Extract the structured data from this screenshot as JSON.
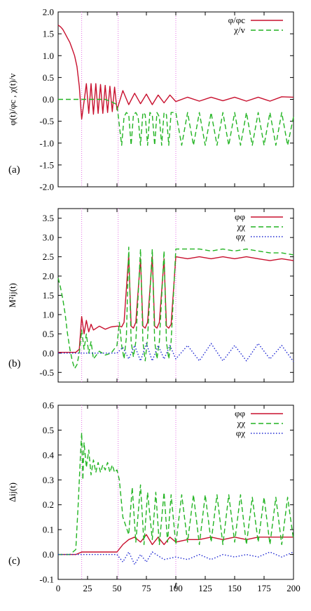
{
  "figure": {
    "xlabel": "t",
    "x_ticks": [
      "0",
      "25",
      "50",
      "75",
      "100",
      "125",
      "150",
      "175",
      "200"
    ],
    "xlim": [
      0,
      200
    ],
    "vlines": [
      20,
      51,
      100
    ],
    "colors": {
      "red": "#c8102e",
      "green": "#22b422",
      "blue": "#1e28d2",
      "vline": "#e46ee4"
    }
  },
  "chart_data": [
    {
      "type": "line",
      "panel": "(a)",
      "ylabel": "φ(t)/φc , χ(t)/v",
      "ylim": [
        -2.0,
        2.0
      ],
      "y_ticks": [
        "2.0",
        "1.5",
        "1.0",
        "0.5",
        "0.0",
        "-0.5",
        "-1.0",
        "-1.5",
        "-2.0"
      ],
      "legend": {
        "position": "top-right",
        "entries": [
          "φ/φc",
          "χ/v"
        ]
      },
      "series": [
        {
          "name": "φ/φc",
          "color": "red",
          "style": "solid",
          "x": [
            0,
            2,
            4,
            6,
            8,
            10,
            12,
            14,
            16,
            18,
            20,
            22,
            24,
            26,
            28,
            30,
            32,
            34,
            36,
            38,
            40,
            42,
            44,
            46,
            48,
            50,
            55,
            60,
            65,
            70,
            75,
            80,
            85,
            90,
            95,
            100,
            110,
            120,
            130,
            140,
            150,
            160,
            170,
            180,
            190,
            200
          ],
          "y": [
            1.7,
            1.66,
            1.6,
            1.5,
            1.4,
            1.3,
            1.15,
            1.0,
            0.75,
            0.3,
            -0.45,
            -0.05,
            0.36,
            -0.32,
            0.36,
            -0.34,
            0.36,
            -0.32,
            0.34,
            -0.32,
            0.32,
            -0.3,
            0.3,
            -0.28,
            0.28,
            -0.24,
            0.2,
            -0.12,
            0.14,
            -0.1,
            0.12,
            -0.12,
            0.1,
            -0.08,
            0.1,
            -0.05,
            0.05,
            -0.04,
            0.05,
            -0.03,
            0.05,
            -0.04,
            0.05,
            -0.04,
            0.06,
            0.05
          ]
        },
        {
          "name": "χ/v",
          "color": "green",
          "style": "dashed",
          "x": [
            0,
            20,
            40,
            45,
            50,
            52,
            54,
            56,
            58,
            60,
            62,
            64,
            66,
            68,
            70,
            72,
            74,
            76,
            78,
            80,
            82,
            84,
            86,
            88,
            90,
            92,
            94,
            96,
            98,
            100,
            105,
            110,
            115,
            120,
            125,
            130,
            135,
            140,
            145,
            150,
            155,
            160,
            165,
            170,
            175,
            180,
            185,
            190,
            195,
            200
          ],
          "y": [
            0.0,
            0.0,
            0.0,
            -0.05,
            -0.12,
            -0.6,
            -1.05,
            -0.4,
            -0.3,
            -0.35,
            -1.05,
            -0.35,
            -0.3,
            -0.4,
            -1.05,
            -0.3,
            -0.35,
            -1.05,
            -0.3,
            -0.35,
            -1.05,
            -0.3,
            -0.4,
            -1.05,
            -0.3,
            -0.35,
            -1.05,
            -0.3,
            -0.3,
            -0.3,
            -1.05,
            -0.3,
            -1.05,
            -0.3,
            -1.05,
            -0.3,
            -1.05,
            -0.3,
            -1.05,
            -0.3,
            -1.05,
            -0.3,
            -1.05,
            -0.3,
            -1.05,
            -0.3,
            -1.05,
            -0.3,
            -1.05,
            -0.4
          ]
        }
      ]
    },
    {
      "type": "line",
      "panel": "(b)",
      "ylabel": "M²ij(t)",
      "ylim": [
        -0.75,
        3.75
      ],
      "y_ticks": [
        "3.5",
        "3.0",
        "2.5",
        "2.0",
        "1.5",
        "1.0",
        "0.5",
        "0.0",
        "-0.5"
      ],
      "legend": {
        "position": "top-right",
        "entries": [
          "φφ",
          "χχ",
          "φχ"
        ]
      },
      "series": [
        {
          "name": "φφ",
          "color": "red",
          "style": "solid",
          "x": [
            0,
            10,
            15,
            18,
            20,
            22,
            24,
            26,
            28,
            30,
            35,
            40,
            45,
            50,
            52,
            54,
            56,
            60,
            62,
            64,
            66,
            70,
            72,
            74,
            76,
            80,
            82,
            84,
            86,
            90,
            92,
            94,
            96,
            100,
            110,
            120,
            130,
            140,
            150,
            160,
            170,
            180,
            190,
            200
          ],
          "y": [
            0.02,
            0.02,
            0.02,
            0.1,
            0.95,
            0.5,
            0.85,
            0.55,
            0.75,
            0.6,
            0.7,
            0.62,
            0.68,
            0.7,
            0.7,
            0.68,
            0.8,
            2.55,
            0.7,
            0.65,
            0.8,
            2.45,
            0.7,
            0.65,
            0.8,
            2.5,
            0.7,
            0.65,
            0.8,
            2.45,
            0.7,
            0.65,
            0.75,
            2.5,
            2.45,
            2.5,
            2.45,
            2.5,
            2.45,
            2.5,
            2.45,
            2.4,
            2.45,
            2.4
          ]
        },
        {
          "name": "χχ",
          "color": "green",
          "style": "dashed",
          "x": [
            0,
            2,
            4,
            6,
            8,
            10,
            12,
            14,
            16,
            18,
            20,
            22,
            24,
            26,
            28,
            30,
            35,
            40,
            45,
            50,
            52,
            54,
            56,
            58,
            60,
            62,
            64,
            66,
            70,
            72,
            74,
            76,
            80,
            82,
            84,
            86,
            90,
            92,
            94,
            96,
            100,
            110,
            120,
            130,
            140,
            150,
            160,
            170,
            180,
            190,
            200
          ],
          "y": [
            1.95,
            1.7,
            1.4,
            1.0,
            0.5,
            0.1,
            -0.2,
            -0.4,
            -0.3,
            0.0,
            0.6,
            0.1,
            0.5,
            0.0,
            0.3,
            -0.15,
            0.05,
            -0.05,
            0.0,
            0.2,
            0.8,
            0.2,
            -0.15,
            0.4,
            2.75,
            0.3,
            -0.1,
            0.3,
            2.7,
            0.3,
            -0.2,
            0.4,
            2.7,
            0.3,
            -0.15,
            0.3,
            2.65,
            0.3,
            -0.15,
            0.3,
            2.7,
            2.7,
            2.7,
            2.65,
            2.7,
            2.65,
            2.7,
            2.65,
            2.6,
            2.6,
            2.55
          ]
        },
        {
          "name": "φχ",
          "color": "blue",
          "style": "dotted",
          "x": [
            0,
            20,
            30,
            40,
            50,
            55,
            60,
            65,
            70,
            75,
            80,
            85,
            90,
            95,
            100,
            110,
            120,
            130,
            140,
            150,
            160,
            170,
            180,
            190,
            200
          ],
          "y": [
            0.0,
            0.0,
            0.0,
            0.0,
            0.0,
            0.15,
            -0.15,
            0.2,
            -0.2,
            0.25,
            -0.2,
            0.2,
            -0.15,
            0.2,
            -0.15,
            0.2,
            -0.2,
            0.25,
            -0.2,
            0.2,
            -0.2,
            0.25,
            -0.15,
            0.2,
            -0.22
          ]
        }
      ]
    },
    {
      "type": "line",
      "panel": "(c)",
      "ylabel": "Δij(t)",
      "ylim": [
        -0.1,
        0.6
      ],
      "y_ticks": [
        "0.6",
        "0.5",
        "0.4",
        "0.3",
        "0.2",
        "0.1",
        "0.0",
        "-0.1"
      ],
      "legend": {
        "position": "top-right",
        "entries": [
          "φφ",
          "χχ",
          "φχ"
        ]
      },
      "series": [
        {
          "name": "φφ",
          "color": "red",
          "style": "solid",
          "x": [
            0,
            10,
            15,
            20,
            25,
            30,
            40,
            50,
            55,
            60,
            65,
            70,
            75,
            80,
            85,
            90,
            95,
            100,
            110,
            120,
            130,
            140,
            150,
            160,
            170,
            180,
            190,
            200
          ],
          "y": [
            0.0,
            0.0,
            0.0,
            0.01,
            0.01,
            0.01,
            0.01,
            0.01,
            0.04,
            0.06,
            0.07,
            0.05,
            0.08,
            0.04,
            0.07,
            0.04,
            0.07,
            0.05,
            0.06,
            0.06,
            0.07,
            0.06,
            0.07,
            0.06,
            0.07,
            0.07,
            0.07,
            0.07
          ]
        },
        {
          "name": "χχ",
          "color": "green",
          "style": "dashed",
          "x": [
            0,
            10,
            15,
            17,
            19,
            20,
            21,
            22,
            24,
            26,
            28,
            30,
            32,
            34,
            36,
            38,
            40,
            42,
            44,
            46,
            48,
            50,
            52,
            55,
            60,
            63,
            66,
            70,
            73,
            76,
            80,
            83,
            86,
            90,
            93,
            96,
            100,
            105,
            110,
            115,
            120,
            125,
            130,
            135,
            140,
            145,
            150,
            155,
            160,
            165,
            170,
            175,
            180,
            185,
            190,
            195,
            200
          ],
          "y": [
            0.0,
            0.0,
            0.02,
            0.2,
            0.4,
            0.49,
            0.3,
            0.45,
            0.35,
            0.42,
            0.32,
            0.38,
            0.33,
            0.37,
            0.33,
            0.36,
            0.34,
            0.37,
            0.33,
            0.36,
            0.33,
            0.34,
            0.3,
            0.15,
            0.08,
            0.27,
            0.05,
            0.28,
            0.04,
            0.25,
            0.06,
            0.25,
            0.04,
            0.25,
            0.05,
            0.24,
            0.04,
            0.24,
            0.05,
            0.24,
            0.04,
            0.24,
            0.05,
            0.24,
            0.04,
            0.24,
            0.05,
            0.24,
            0.04,
            0.23,
            0.05,
            0.23,
            0.04,
            0.23,
            0.04,
            0.23,
            0.06
          ]
        },
        {
          "name": "φχ",
          "color": "blue",
          "style": "dotted",
          "x": [
            0,
            20,
            40,
            50,
            55,
            60,
            65,
            70,
            75,
            80,
            90,
            100,
            110,
            120,
            130,
            140,
            150,
            160,
            170,
            180,
            190,
            200
          ],
          "y": [
            0.0,
            0.0,
            0.0,
            0.0,
            -0.03,
            0.01,
            -0.04,
            0.0,
            -0.03,
            0.01,
            -0.02,
            -0.01,
            -0.02,
            0.0,
            -0.02,
            0.0,
            -0.01,
            0.0,
            -0.01,
            0.01,
            -0.01,
            0.01
          ]
        }
      ]
    }
  ]
}
